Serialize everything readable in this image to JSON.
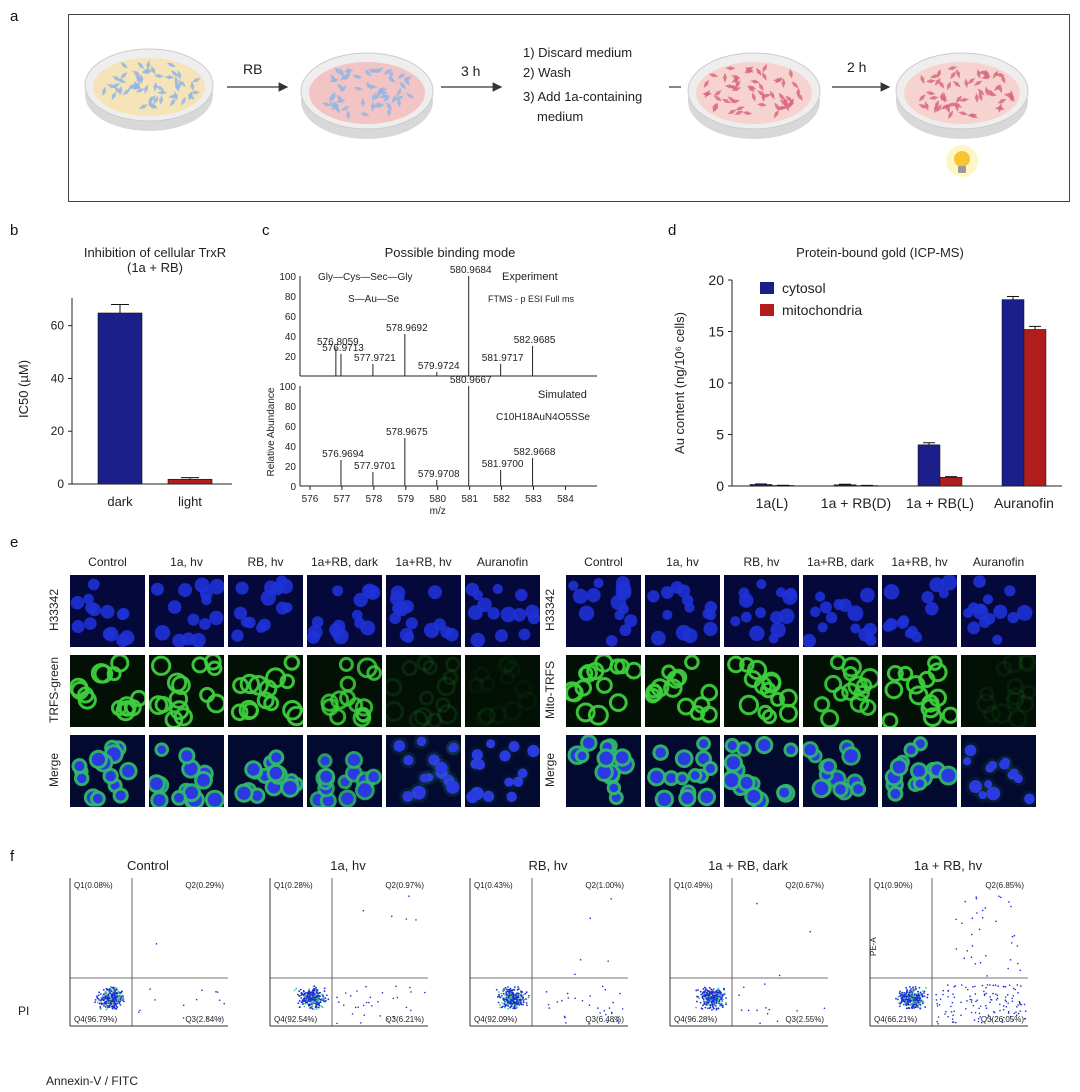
{
  "panel_labels": {
    "a": "a",
    "b": "b",
    "c": "c",
    "d": "d",
    "e": "e",
    "f": "f"
  },
  "panel_a": {
    "step1": "RB",
    "step2": "3 h",
    "step3_lines": [
      "1) Discard medium",
      "2) Wash",
      "3) Add 1a-containing",
      "medium"
    ],
    "step4": "2 h",
    "colors": {
      "dish_rim": "#e8e8e8",
      "medium_yellow": "#f6e3b8",
      "medium_pink": "#f3c4c4",
      "cell_blue": "#9cc3ec",
      "cell_pink": "#e0788a",
      "bulb": "#f7c530"
    }
  },
  "panel_b": {
    "title_line1": "Inhibition of cellular TrxR",
    "title_line2": "(1a + RB)",
    "ylabel": "IC50 (µM)",
    "yticks": [
      "0",
      "20",
      "40",
      "60"
    ],
    "chart_data": {
      "type": "bar",
      "categories": [
        "dark",
        "light"
      ],
      "values": [
        64.8,
        1.8
      ],
      "errors": [
        3.2,
        0.6
      ],
      "colors": [
        "#1b1f8a",
        "#b11d1d"
      ],
      "ylim": [
        0,
        72
      ],
      "ylabel": "IC50 (µM)"
    }
  },
  "panel_c": {
    "title": "Possible binding mode",
    "structure_top": "Gly—Cys—Sec—Gly",
    "structure_bottom": "S—Au—Se",
    "experiment_label": "Experiment",
    "experiment_sub": "FTMS - p ESI Full ms",
    "simulated_label": "Simulated",
    "formula": "C10H18AuN4O5SSe",
    "ylabel": "Relative Abundance",
    "xlabel": "m/z",
    "yticks_top": [
      "100",
      "80",
      "60",
      "40",
      "20"
    ],
    "yticks_bottom": [
      "100",
      "80",
      "60",
      "40",
      "20",
      "0"
    ],
    "xticks": [
      "576",
      "577",
      "578",
      "579",
      "580",
      "581",
      "582",
      "583",
      "584"
    ],
    "top_peaks": [
      {
        "label": "576.8059",
        "mz": 576.81,
        "h": 28
      },
      {
        "label": "576.9713",
        "mz": 576.97,
        "h": 22
      },
      {
        "label": "577.9721",
        "mz": 577.97,
        "h": 12
      },
      {
        "label": "578.9692",
        "mz": 578.97,
        "h": 42
      },
      {
        "label": "579.9724",
        "mz": 579.97,
        "h": 4
      },
      {
        "label": "580.9684",
        "mz": 580.97,
        "h": 100
      },
      {
        "label": "581.9717",
        "mz": 581.97,
        "h": 12
      },
      {
        "label": "582.9685",
        "mz": 582.97,
        "h": 30
      }
    ],
    "bottom_peaks": [
      {
        "label": "576.9694",
        "mz": 576.97,
        "h": 26
      },
      {
        "label": "577.9701",
        "mz": 577.97,
        "h": 14
      },
      {
        "label": "578.9675",
        "mz": 578.97,
        "h": 48
      },
      {
        "label": "579.9708",
        "mz": 579.97,
        "h": 6
      },
      {
        "label": "580.9667",
        "mz": 580.97,
        "h": 100
      },
      {
        "label": "581.9700",
        "mz": 581.97,
        "h": 16
      },
      {
        "label": "582.9668",
        "mz": 582.97,
        "h": 28
      }
    ]
  },
  "panel_d": {
    "title": "Protein-bound gold (ICP-MS)",
    "ylabel": "Au content (ng/10⁶ cells)",
    "yticks": [
      "0",
      "5",
      "10",
      "15",
      "20"
    ],
    "chart_data": {
      "type": "bar",
      "categories": [
        "1a(L)",
        "1a + RB(D)",
        "1a + RB(L)",
        "Auranofin"
      ],
      "series": [
        {
          "name": "cytosol",
          "color": "#1b1f8a",
          "values": [
            0.15,
            0.12,
            4.0,
            18.1
          ],
          "errors": [
            0.05,
            0.05,
            0.2,
            0.3
          ]
        },
        {
          "name": "mitochondria",
          "color": "#b11d1d",
          "values": [
            0.05,
            0.04,
            0.85,
            15.2
          ],
          "errors": [
            0.02,
            0.02,
            0.06,
            0.3
          ]
        }
      ],
      "ylim": [
        0,
        20
      ]
    }
  },
  "panel_e": {
    "left_cols": [
      "Control",
      "1a, hv",
      "RB, hv",
      "1a+RB, dark",
      "1a+RB, hv",
      "Auranofin"
    ],
    "right_cols": [
      "Control",
      "1a, hv",
      "RB, hv",
      "1a+RB, dark",
      "1a+RB, hv",
      "Auranofin"
    ],
    "left_rows": [
      "H33342",
      "TRFS-green",
      "Merge"
    ],
    "right_rows": [
      "H33342",
      "Mito-TRFS",
      "Merge"
    ]
  },
  "panel_f": {
    "titles": [
      "Control",
      "1a, hv",
      "RB, hv",
      "1a + RB, dark",
      "1a + RB, hv"
    ],
    "ylabel": "PI",
    "xlabel": "Annexin-V / FITC",
    "alt_ylabel": "PE-A",
    "plots": [
      {
        "q1": "Q1(0.08%)",
        "q2": "Q2(0.29%)",
        "q3": "Q3(2.84%)",
        "q4": "Q4(96.79%)",
        "q2v": 0.29,
        "q3v": 2.84
      },
      {
        "q1": "Q1(0.28%)",
        "q2": "Q2(0.97%)",
        "q3": "Q3(6.21%)",
        "q4": "Q4(92.54%)",
        "q2v": 0.97,
        "q3v": 6.21
      },
      {
        "q1": "Q1(0.43%)",
        "q2": "Q2(1.00%)",
        "q3": "Q3(6.48%)",
        "q4": "Q4(92.09%)",
        "q2v": 1.0,
        "q3v": 6.48
      },
      {
        "q1": "Q1(0.49%)",
        "q2": "Q2(0.67%)",
        "q3": "Q3(2.55%)",
        "q4": "Q4(96.28%)",
        "q2v": 0.67,
        "q3v": 2.55
      },
      {
        "q1": "Q1(0.90%)",
        "q2": "Q2(6.85%)",
        "q3": "Q3(26.05%)",
        "q4": "Q4(66.21%)",
        "q2v": 6.85,
        "q3v": 26.05
      }
    ]
  }
}
